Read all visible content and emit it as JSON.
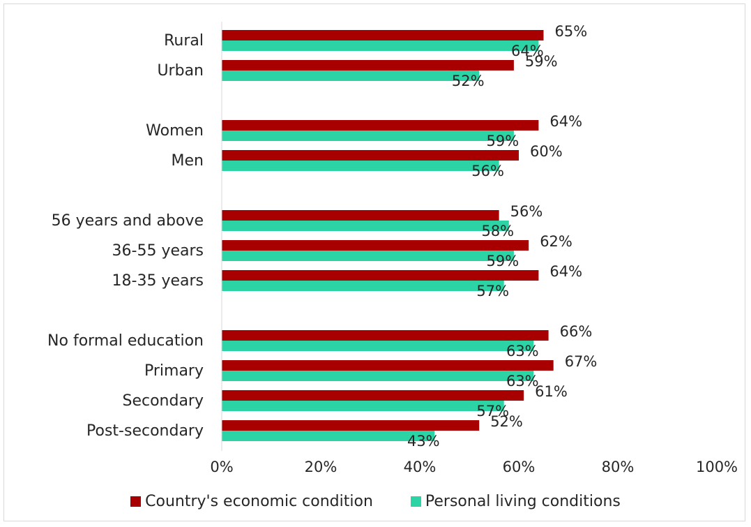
{
  "chart_data": {
    "type": "bar",
    "orientation": "horizontal",
    "categories": [
      "Rural",
      "Urban",
      "Women",
      "Men",
      "56 years and above",
      "36-55 years",
      "18-35 years",
      "No formal education",
      "Primary",
      "Secondary",
      "Post-secondary"
    ],
    "groups": [
      [
        "Rural",
        "Urban"
      ],
      [
        "Women",
        "Men"
      ],
      [
        "56 years and above",
        "36-55 years",
        "18-35 years"
      ],
      [
        "No formal education",
        "Primary",
        "Secondary",
        "Post-secondary"
      ]
    ],
    "series": [
      {
        "name": "Country's economic condition",
        "color": "#a80000",
        "values": [
          65,
          59,
          64,
          60,
          56,
          62,
          64,
          66,
          67,
          61,
          52
        ],
        "labels": [
          "65%",
          "59%",
          "64%",
          "60%",
          "56%",
          "62%",
          "64%",
          "66%",
          "67%",
          "61%",
          "52%"
        ]
      },
      {
        "name": "Personal living conditions",
        "color": "#2bd3a5",
        "values": [
          64,
          52,
          59,
          56,
          58,
          59,
          57,
          63,
          63,
          57,
          43
        ],
        "labels": [
          "64%",
          "52%",
          "59%",
          "56%",
          "58%",
          "59%",
          "57%",
          "63%",
          "63%",
          "57%",
          "43%"
        ]
      }
    ],
    "xlim": [
      0,
      100
    ],
    "xticks": [
      0,
      20,
      40,
      60,
      80,
      100
    ],
    "xtick_labels": [
      "0%",
      "20%",
      "40%",
      "60%",
      "80%",
      "100%"
    ],
    "title": "",
    "xlabel": "",
    "ylabel": "",
    "grid": false,
    "legend_position": "bottom"
  }
}
